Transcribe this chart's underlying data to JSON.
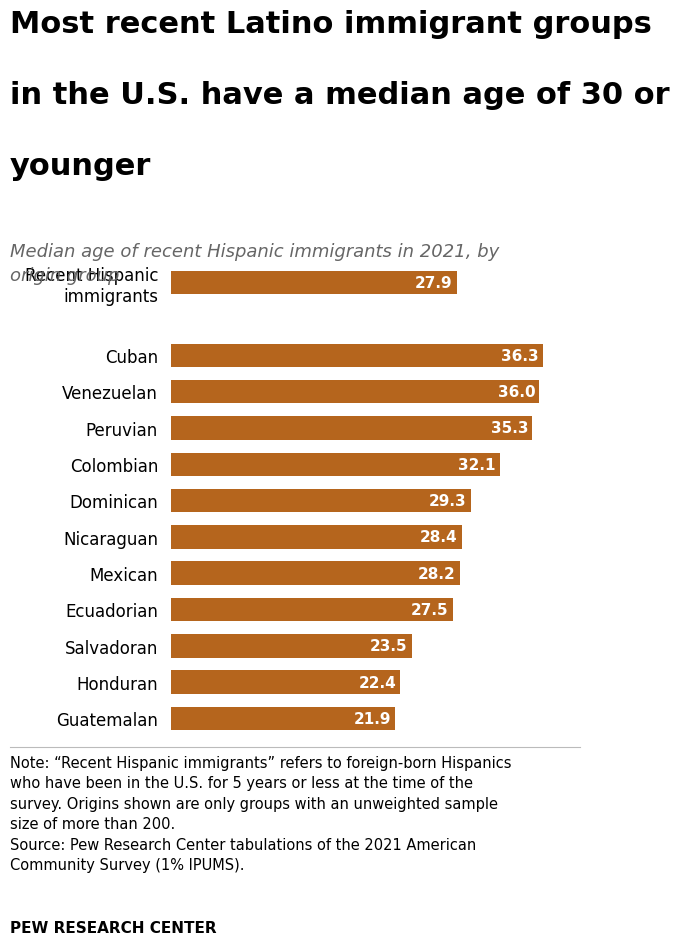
{
  "title_line1": "Most recent Latino immigrant groups",
  "title_line2": "in the U.S. have a median age of 30 or",
  "title_line3": "younger",
  "subtitle": "Median age of recent Hispanic immigrants in 2021, by\norigin group",
  "categories": [
    "Recent Hispanic\nimmigrants",
    "",
    "Cuban",
    "Venezuelan",
    "Peruvian",
    "Colombian",
    "Dominican",
    "Nicaraguan",
    "Mexican",
    "Ecuadorian",
    "Salvadoran",
    "Honduran",
    "Guatemalan"
  ],
  "values": [
    27.9,
    null,
    36.3,
    36.0,
    35.3,
    32.1,
    29.3,
    28.4,
    28.2,
    27.5,
    23.5,
    22.4,
    21.9
  ],
  "bar_color": "#B5651D",
  "value_label_color": "#FFFFFF",
  "xlim": [
    0,
    40
  ],
  "note_text": "Note: “Recent Hispanic immigrants” refers to foreign-born Hispanics\nwho have been in the U.S. for 5 years or less at the time of the\nsurvey. Origins shown are only groups with an unweighted sample\nsize of more than 200.\nSource: Pew Research Center tabulations of the 2021 American\nCommunity Survey (1% IPUMS).",
  "source_label": "PEW RESEARCH CENTER",
  "background_color": "#FFFFFF",
  "title_fontsize": 22,
  "subtitle_fontsize": 13,
  "tick_fontsize": 12,
  "value_fontsize": 11,
  "note_fontsize": 10.5,
  "bar_height": 0.65
}
